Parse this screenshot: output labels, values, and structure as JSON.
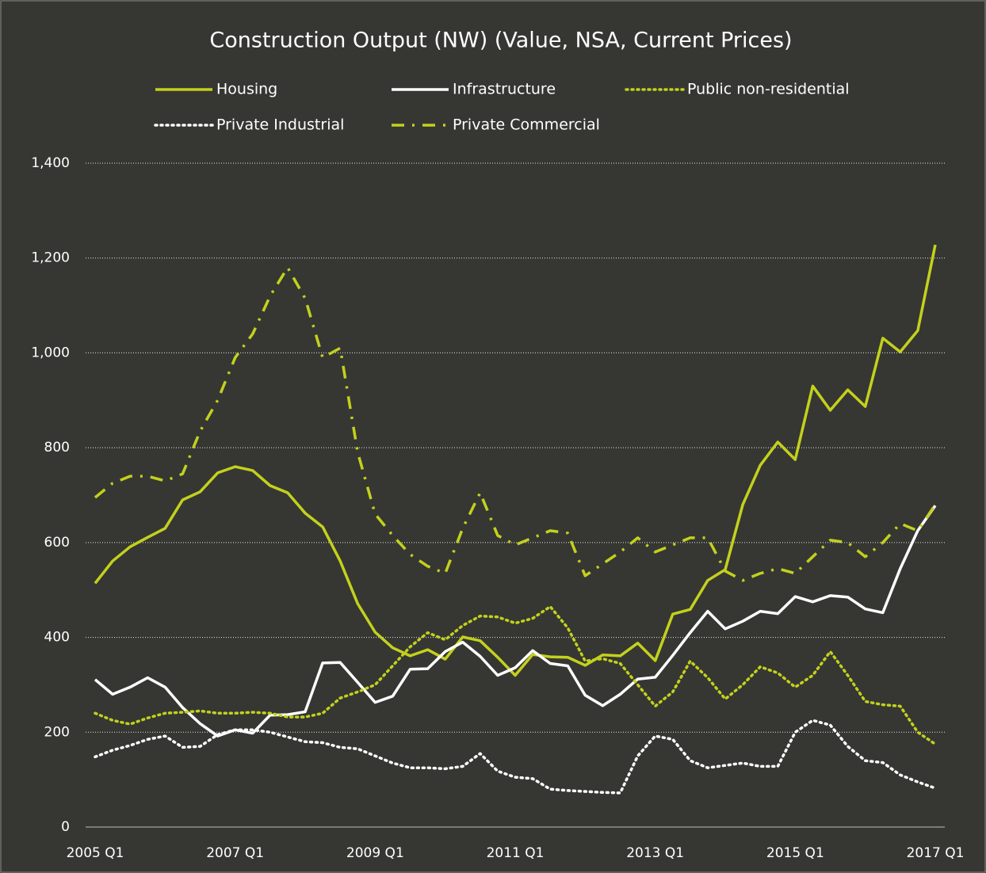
{
  "chart_data": {
    "type": "line",
    "title": "Construction Output (NW) (Value, NSA, Current Prices)",
    "categories": [
      "2005 Q1",
      null,
      null,
      null,
      null,
      null,
      null,
      null,
      "2007 Q1",
      null,
      null,
      null,
      null,
      null,
      null,
      null,
      "2009 Q1",
      null,
      null,
      null,
      null,
      null,
      null,
      null,
      "2011 Q1",
      null,
      null,
      null,
      null,
      null,
      null,
      null,
      "2013 Q1",
      null,
      null,
      null,
      null,
      null,
      null,
      null,
      "2015 Q1",
      null,
      null,
      null,
      null,
      null,
      null,
      null,
      "2017 Q1"
    ],
    "ylim": [
      0,
      1400
    ],
    "yticks": [
      0,
      200,
      400,
      600,
      800,
      {
        "value": 1000,
        "label": "1,000"
      },
      {
        "value": 1200,
        "label": "1,200"
      },
      {
        "value": 1400,
        "label": "1,400"
      }
    ],
    "grid": true,
    "series": [
      {
        "name": "Housing",
        "color": "#c3d11c",
        "style": "solid",
        "values": [
          514,
          561,
          591,
          611,
          630,
          690,
          707,
          747,
          760,
          752,
          720,
          705,
          662,
          633,
          561,
          471,
          411,
          378,
          361,
          374,
          354,
          401,
          393,
          358,
          320,
          364,
          359,
          358,
          341,
          363,
          361,
          388,
          351,
          449,
          459,
          520,
          543,
          680,
          763,
          812,
          775,
          930,
          879,
          922,
          887,
          1031,
          1002,
          1047,
          1228
        ]
      },
      {
        "name": "Infrastructure",
        "color": "#ffffff",
        "style": "solid",
        "values": [
          311,
          280,
          295,
          315,
          295,
          252,
          218,
          192,
          205,
          198,
          236,
          237,
          243,
          346,
          347,
          305,
          263,
          276,
          333,
          334,
          370,
          390,
          360,
          320,
          336,
          372,
          345,
          340,
          278,
          256,
          280,
          312,
          316,
          362,
          410,
          455,
          418,
          434,
          455,
          450,
          486,
          475,
          488,
          485,
          460,
          452,
          545,
          625,
          678
        ]
      },
      {
        "name": "Public non-residential",
        "color": "#c3d11c",
        "style": "dotted",
        "values": [
          240,
          225,
          217,
          230,
          240,
          242,
          245,
          240,
          240,
          242,
          240,
          232,
          232,
          240,
          272,
          285,
          300,
          340,
          380,
          410,
          395,
          425,
          445,
          443,
          430,
          440,
          465,
          420,
          350,
          355,
          345,
          300,
          255,
          285,
          350,
          315,
          270,
          300,
          338,
          325,
          295,
          320,
          370,
          320,
          265,
          258,
          255,
          200,
          175
        ]
      },
      {
        "name": "Private Industrial",
        "color": "#ffffff",
        "style": "dotted",
        "values": [
          148,
          162,
          172,
          185,
          192,
          168,
          170,
          195,
          205,
          205,
          200,
          190,
          180,
          178,
          168,
          165,
          150,
          135,
          125,
          125,
          123,
          128,
          155,
          118,
          105,
          102,
          80,
          77,
          75,
          73,
          72,
          150,
          192,
          185,
          140,
          125,
          130,
          135,
          128,
          128,
          200,
          225,
          215,
          170,
          140,
          136,
          110,
          95,
          82
        ]
      },
      {
        "name": "Private Commercial",
        "color": "#c3d11c",
        "style": "dashdot",
        "values": [
          695,
          725,
          740,
          740,
          730,
          745,
          835,
          900,
          990,
          1040,
          1120,
          1180,
          1115,
          990,
          1010,
          790,
          660,
          615,
          575,
          550,
          535,
          630,
          705,
          615,
          595,
          610,
          625,
          620,
          530,
          555,
          580,
          610,
          580,
          595,
          610,
          610,
          540,
          520,
          535,
          545,
          535,
          570,
          605,
          600,
          570,
          600,
          640,
          625,
          680
        ]
      }
    ]
  }
}
